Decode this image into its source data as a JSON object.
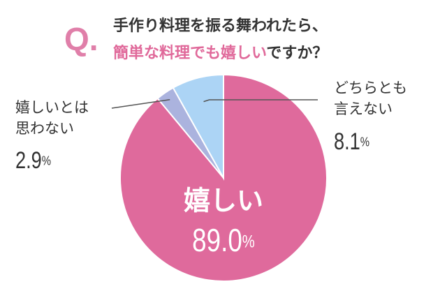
{
  "header": {
    "q_mark": "Q.",
    "line1": "手作り料理を振る舞われたら、",
    "highlight": "簡単な料理でも嬉しい",
    "rest": "ですか？"
  },
  "chart_data": {
    "type": "pie",
    "categories": [
      [
        "嬉しい"
      ],
      [
        "嬉しいとは",
        "思わない"
      ],
      [
        "どちらとも",
        "言えない"
      ]
    ],
    "values": [
      89.0,
      2.9,
      8.1
    ],
    "value_labels": [
      "89.0%",
      "2.9%",
      "8.1%"
    ],
    "colors": [
      "#df6a9c",
      "#abb3de",
      "#acd4f5"
    ]
  }
}
